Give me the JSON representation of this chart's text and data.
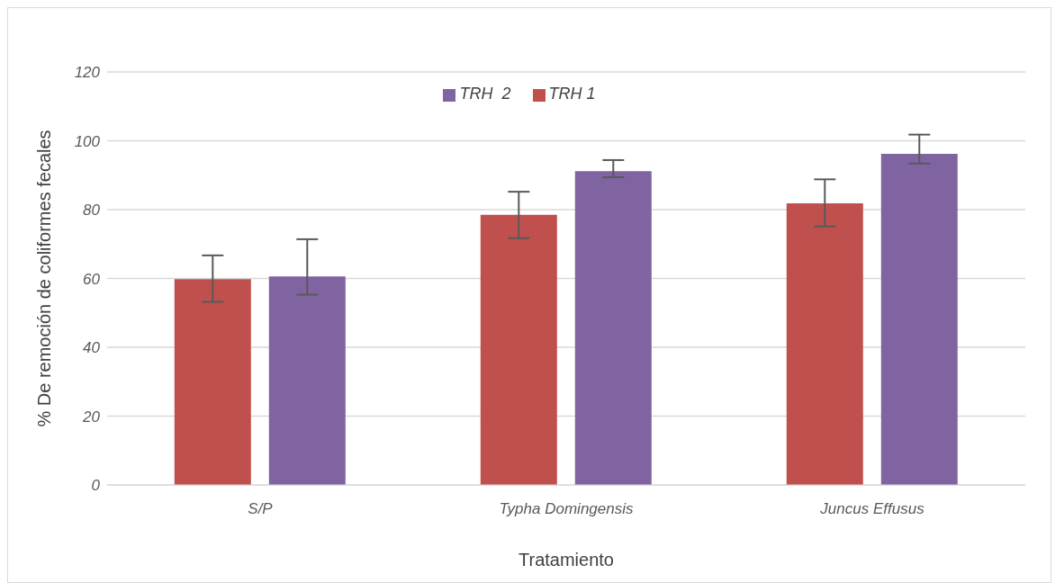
{
  "chart_data": {
    "type": "bar",
    "xlabel": "Tratamiento",
    "ylabel": "% De remoción de coliformes fecales",
    "categories": [
      "S/P",
      "Typha Domingensis",
      "Juncus Effusus"
    ],
    "series": [
      {
        "name": "TRH 1",
        "color": "#c0504d",
        "values": [
          59.8,
          78.5,
          81.8
        ],
        "errors": [
          [
            53.2,
            66.7
          ],
          [
            71.7,
            85.2
          ],
          [
            75.1,
            88.8
          ]
        ]
      },
      {
        "name": "TRH  2",
        "color": "#8064a2",
        "values": [
          60.6,
          91.2,
          96.2
        ],
        "errors": [
          [
            55.3,
            71.4
          ],
          [
            89.4,
            94.4
          ],
          [
            93.4,
            101.8
          ]
        ]
      }
    ],
    "ylim": [
      0,
      120
    ],
    "yticks": [
      0,
      20,
      40,
      60,
      80,
      100,
      120
    ],
    "grid": "y",
    "legend": "top"
  }
}
